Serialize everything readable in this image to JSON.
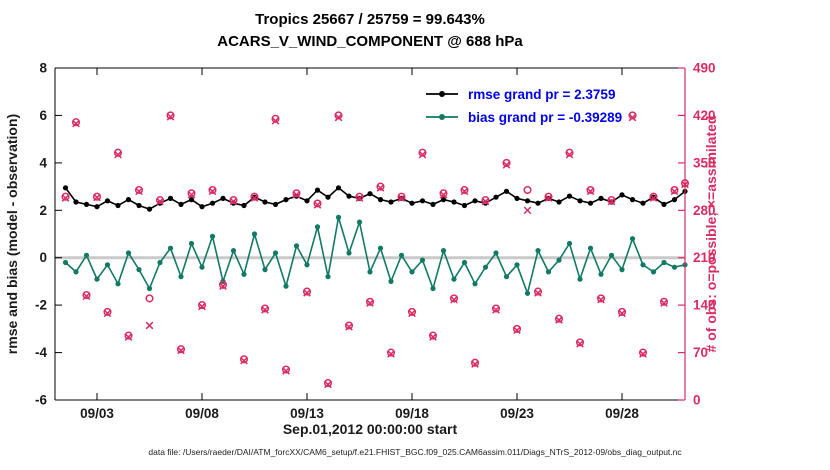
{
  "title": {
    "line1": "Tropics 25667 / 25759 = 99.643%",
    "line2": "ACARS_V_WIND_COMPONENT @ 688 hPa"
  },
  "caption": "data file: /Users/raeder/DAI/ATM_forcXX/CAM6_setup/f.e21.FHIST_BGC.f09_025.CAM6assim.011/Diags_NTrS_2012-09/obs_diag_output.nc",
  "chart_data": {
    "type": "line",
    "title": "Tropics 25667 / 25759 = 99.643% — ACARS_V_WIND_COMPONENT @ 688 hPa",
    "legend_position": "top-right-inside",
    "grid": false,
    "zero_line_color": "#c9c9c9",
    "legend_text_color": "#0000ee",
    "x_axis": {
      "label": "Sep.01,2012 00:00:00 start",
      "xlim": [
        0,
        30
      ],
      "tick_days": [
        2,
        7,
        12,
        17,
        22,
        27
      ],
      "tick_labels": [
        "09/03",
        "09/08",
        "09/13",
        "09/18",
        "09/23",
        "09/28"
      ]
    },
    "left_axis": {
      "label": "rmse and bias (model - observation)",
      "ylim": [
        -6,
        8
      ],
      "ticks": [
        -6,
        -4,
        -2,
        0,
        2,
        4,
        6,
        8
      ],
      "color": "#1a1a1a"
    },
    "right_axis": {
      "label": "# of obs: o=possible; ×=assimilated",
      "ylim": [
        0,
        490
      ],
      "ticks": [
        0,
        70,
        140,
        210,
        280,
        350,
        420,
        490
      ],
      "color": "#d92c63"
    },
    "x_days": [
      0.5,
      1,
      1.5,
      2,
      2.5,
      3,
      3.5,
      4,
      4.5,
      5,
      5.5,
      6,
      6.5,
      7,
      7.5,
      8,
      8.5,
      9,
      9.5,
      10,
      10.5,
      11,
      11.5,
      12,
      12.5,
      13,
      13.5,
      14,
      14.5,
      15,
      15.5,
      16,
      16.5,
      17,
      17.5,
      18,
      18.5,
      19,
      19.5,
      20,
      20.5,
      21,
      21.5,
      22,
      22.5,
      23,
      23.5,
      24,
      24.5,
      25,
      25.5,
      26,
      26.5,
      27,
      27.5,
      28,
      28.5,
      29,
      29.5,
      30
    ],
    "series": [
      {
        "id": "rmse",
        "name": "rmse grand pr = 2.3759",
        "grand_value": 2.3759,
        "color": "#000000",
        "marker": "dot",
        "values": [
          2.95,
          2.35,
          2.25,
          2.15,
          2.4,
          2.2,
          2.45,
          2.2,
          2.05,
          2.3,
          2.5,
          2.25,
          2.45,
          2.15,
          2.3,
          2.5,
          2.3,
          2.2,
          2.55,
          2.35,
          2.25,
          2.45,
          2.6,
          2.4,
          2.85,
          2.55,
          2.95,
          2.6,
          2.5,
          2.7,
          2.45,
          2.35,
          2.5,
          2.3,
          2.4,
          2.25,
          2.45,
          2.35,
          2.2,
          2.4,
          2.3,
          2.55,
          2.8,
          2.5,
          2.4,
          2.3,
          2.5,
          2.35,
          2.6,
          2.4,
          2.3,
          2.5,
          2.35,
          2.65,
          2.45,
          2.3,
          2.55,
          2.25,
          2.45,
          2.8
        ]
      },
      {
        "id": "bias",
        "name": "bias grand pr = -0.39289",
        "grand_value": -0.39289,
        "color": "#117a65",
        "marker": "dot",
        "values": [
          -0.2,
          -0.6,
          0.1,
          -0.9,
          -0.3,
          -1.1,
          0.2,
          -0.5,
          -1.3,
          -0.2,
          0.4,
          -0.8,
          0.6,
          -0.4,
          0.9,
          -1.0,
          0.3,
          -0.7,
          1.0,
          -0.5,
          0.2,
          -1.2,
          0.5,
          -0.3,
          1.3,
          -0.8,
          1.7,
          0.2,
          1.5,
          -0.6,
          0.4,
          -1.0,
          0.1,
          -0.6,
          -0.1,
          -1.3,
          0.3,
          -0.9,
          -0.2,
          -1.1,
          -0.4,
          0.2,
          -0.8,
          -0.3,
          -1.5,
          0.3,
          -0.6,
          -0.1,
          0.6,
          -0.9,
          0.4,
          -0.7,
          0.1,
          -0.5,
          0.8,
          -0.3,
          -0.6,
          -0.2,
          -0.4,
          -0.3
        ]
      }
    ],
    "obs": {
      "color": "#d92c63",
      "possible_marker": "o",
      "assimilated_marker": "×",
      "possible": [
        300,
        410,
        155,
        300,
        130,
        365,
        95,
        310,
        150,
        295,
        420,
        75,
        305,
        140,
        310,
        170,
        295,
        60,
        300,
        135,
        415,
        45,
        305,
        160,
        290,
        25,
        420,
        110,
        300,
        145,
        315,
        70,
        300,
        130,
        365,
        95,
        305,
        150,
        310,
        55,
        295,
        135,
        350,
        105,
        310,
        160,
        300,
        120,
        365,
        85,
        310,
        150,
        295,
        130,
        420,
        70,
        300,
        145,
        310,
        320
      ],
      "assimilated": [
        298,
        408,
        153,
        299,
        128,
        362,
        93,
        308,
        110,
        293,
        418,
        73,
        303,
        138,
        308,
        168,
        293,
        58,
        298,
        133,
        412,
        43,
        303,
        158,
        288,
        23,
        417,
        108,
        298,
        143,
        313,
        68,
        298,
        128,
        362,
        93,
        303,
        148,
        308,
        53,
        293,
        133,
        347,
        103,
        280,
        158,
        298,
        118,
        362,
        83,
        308,
        148,
        293,
        128,
        417,
        68,
        298,
        143,
        308,
        318
      ]
    }
  }
}
